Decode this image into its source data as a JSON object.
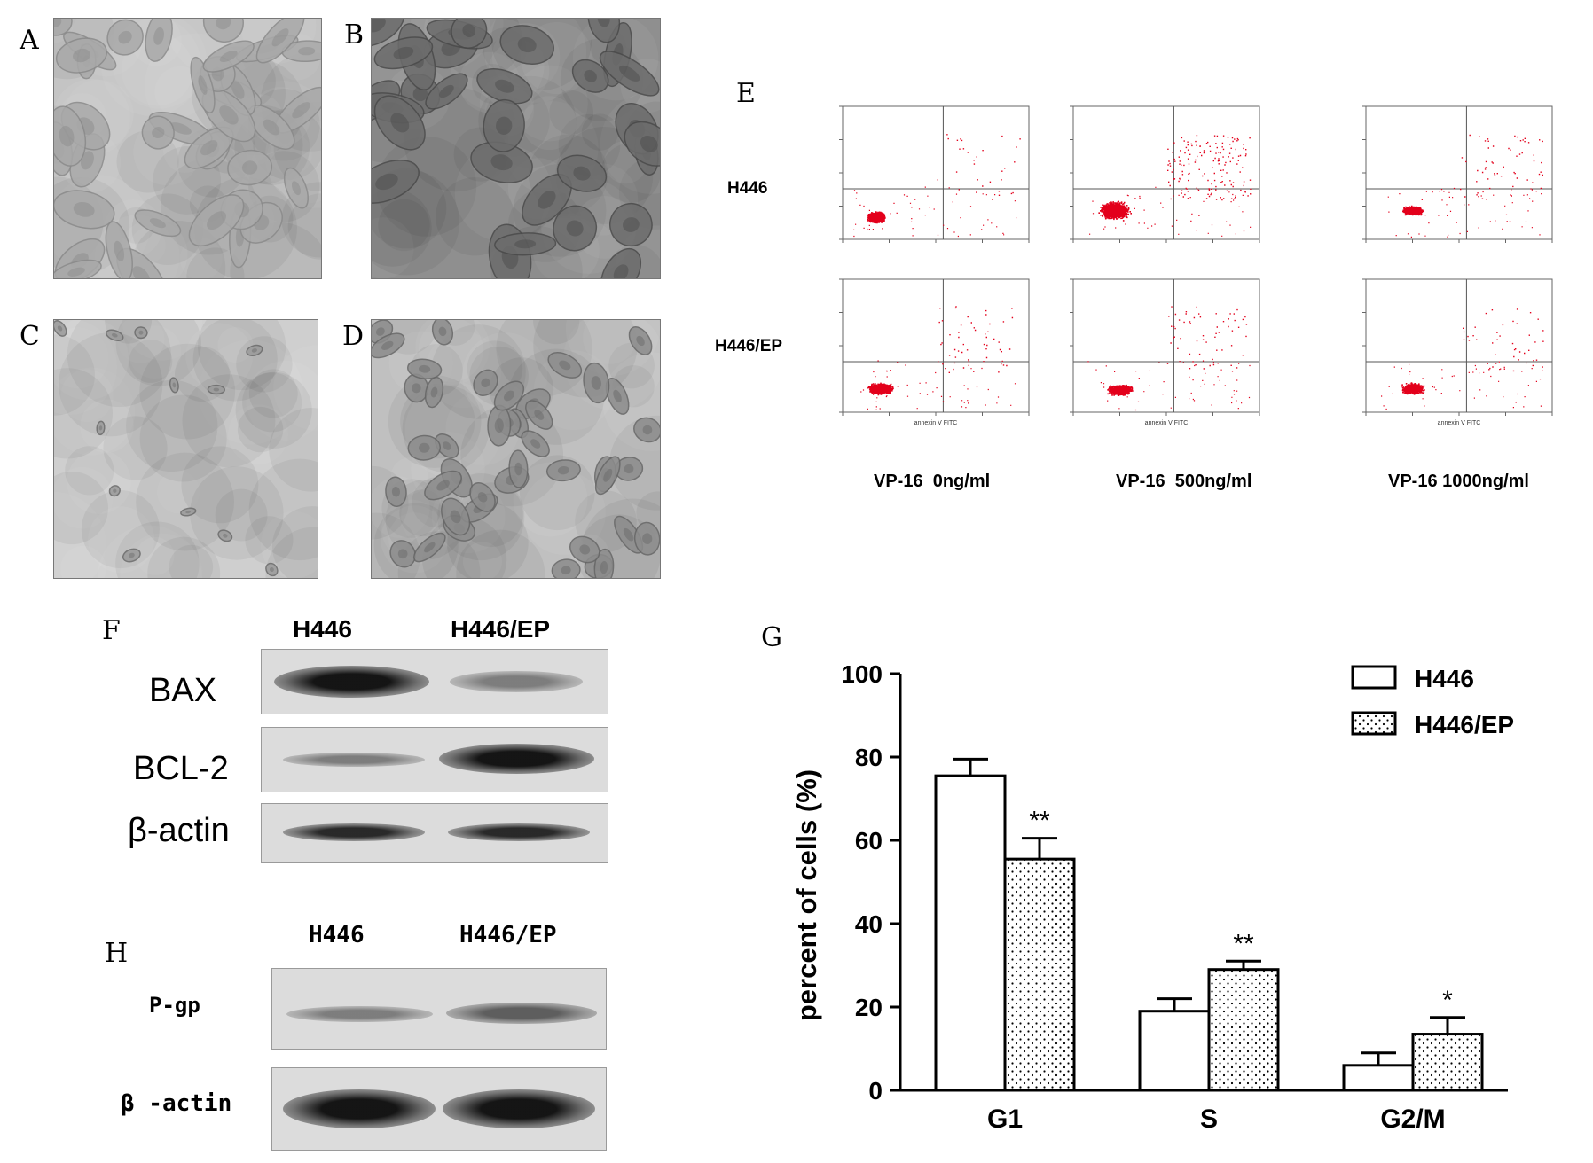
{
  "panels": {
    "micrographs": [
      {
        "letter": "A",
        "texture": "light-scattered-cells"
      },
      {
        "letter": "B",
        "texture": "dark-dense-cells"
      },
      {
        "letter": "C",
        "texture": "sparse-cells"
      },
      {
        "letter": "D",
        "texture": "dense-rounded-cells"
      }
    ],
    "E": {
      "letter": "E",
      "row_labels": [
        "H446",
        "H446/EP"
      ],
      "col_labels": [
        "VP-16  0ng/ml",
        "VP-16  500ng/ml",
        "VP-16 1000ng/ml"
      ],
      "x_axis_label": "annexin V FITC",
      "dot_color": "#e3001b"
    },
    "F": {
      "letter": "F",
      "lanes": [
        "H446",
        "H446/EP"
      ],
      "proteins": [
        {
          "name": "BAX",
          "intensity": [
            0.95,
            0.45
          ]
        },
        {
          "name": "BCL-2",
          "intensity": [
            0.45,
            0.95
          ]
        },
        {
          "name": "β-actin",
          "intensity": [
            0.85,
            0.85
          ]
        }
      ]
    },
    "H": {
      "letter": "H",
      "lanes": [
        "H446",
        "H446/EP"
      ],
      "proteins": [
        {
          "name": "P-gp",
          "intensity": [
            0.45,
            0.6
          ]
        },
        {
          "name": "β -actin",
          "intensity": [
            0.95,
            0.95
          ]
        }
      ]
    },
    "G": {
      "letter": "G"
    }
  },
  "chart_data": {
    "type": "bar",
    "categories": [
      "G1",
      "S",
      "G2/M"
    ],
    "series": [
      {
        "name": "H446",
        "values": [
          75.5,
          19,
          6
        ],
        "errors": [
          4,
          3,
          3
        ],
        "pattern": "white"
      },
      {
        "name": "H446/EP",
        "values": [
          55.5,
          29,
          13.5
        ],
        "errors": [
          5,
          2,
          4
        ],
        "pattern": "dotted"
      }
    ],
    "significance": [
      [
        "",
        "**"
      ],
      [
        "",
        "**"
      ],
      [
        "",
        "*"
      ]
    ],
    "ylabel": "percent of cells (%)",
    "xlabel": "",
    "ylim": [
      0,
      100
    ],
    "yticks": [
      0,
      20,
      40,
      60,
      80,
      100
    ],
    "legend_position": "top-right"
  }
}
